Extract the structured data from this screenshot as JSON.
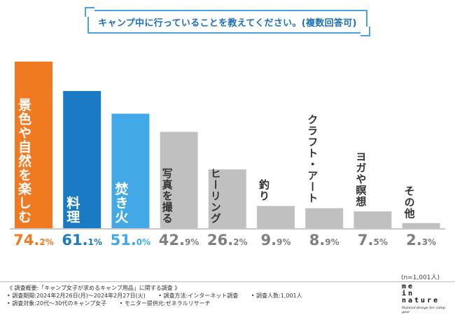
{
  "title": "キャンプ中に行っていることを教えてください。(複数回答可)",
  "colors": {
    "orange": "#f07a22",
    "blue": "#1a7ac4",
    "lightblue": "#42a9e6",
    "gray": "#c0c0c0",
    "title_border": "#4aa3e0",
    "title_text": "#1d6fb8"
  },
  "chart_data": {
    "type": "bar",
    "title": "キャンプ中に行っていることを教えてください。(複数回答可)",
    "categories": [
      "景色や自然を楽しむ",
      "料理",
      "焚き火",
      "写真を撮る",
      "ヒーリング",
      "釣り",
      "クラフト・アート",
      "ヨガや瞑想",
      "その他"
    ],
    "values": [
      74.2,
      61.1,
      51.0,
      42.9,
      26.2,
      9.9,
      8.9,
      7.5,
      2.3
    ],
    "value_labels": [
      {
        "int": "74.",
        "dec": "2%"
      },
      {
        "int": "61.",
        "dec": "1%"
      },
      {
        "int": "51.",
        "dec": "0%"
      },
      {
        "int": "42.",
        "dec": "9%"
      },
      {
        "int": "26.",
        "dec": "2%"
      },
      {
        "int": "9.",
        "dec": "9%"
      },
      {
        "int": "8.",
        "dec": "9%"
      },
      {
        "int": "7.",
        "dec": "5%"
      },
      {
        "int": "2.",
        "dec": "3%"
      }
    ],
    "bar_colors": [
      "#f07a22",
      "#1a7ac4",
      "#42a9e6",
      "#c0c0c0",
      "#c0c0c0",
      "#c0c0c0",
      "#c0c0c0",
      "#c0c0c0",
      "#c0c0c0"
    ],
    "value_colors": [
      "#f07a22",
      "#1a7ac4",
      "#42a9e6",
      "#7f7f7f",
      "#7f7f7f",
      "#7f7f7f",
      "#7f7f7f",
      "#7f7f7f",
      "#7f7f7f"
    ],
    "label_colors": [
      "#ffffff",
      "#ffffff",
      "#ffffff",
      "#333333",
      "#333333",
      "#333333",
      "#333333",
      "#333333",
      "#333333"
    ],
    "ylim": [
      0,
      80
    ],
    "xlabel": "",
    "ylabel": ""
  },
  "sample_note": "(n=1,001人)",
  "footer": {
    "line1": "《 調査概要:「キャンプ女子が求めるキャンプ用品」に関する調査 》",
    "period": "• 調査期間:2024年2月26日(月)〜2024年2月27日(火)",
    "method": "• 調査方法:インターネット調査",
    "count": "• 調査人数:1,001人",
    "target": "• 調査対象:20代〜30代のキャンプ女子",
    "provider": "• モニター提供元:ゼネラルリサーチ"
  },
  "logo": {
    "line1": "me",
    "line2": "in",
    "line3": "nature",
    "tagline": "Natural design for camp gear"
  }
}
